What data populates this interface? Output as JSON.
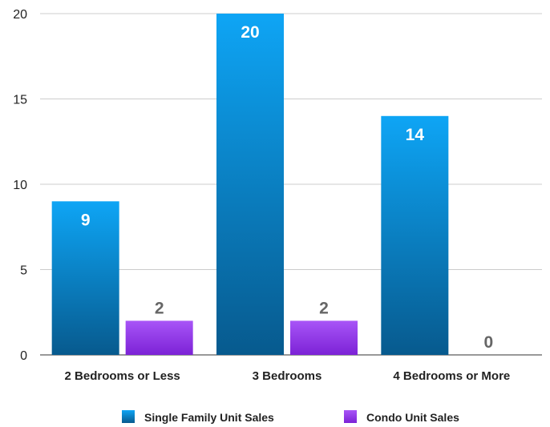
{
  "chart_data": {
    "type": "bar",
    "categories": [
      "2 Bedrooms or Less",
      "3 Bedrooms",
      "4 Bedrooms or More"
    ],
    "series": [
      {
        "name": "Single Family Unit Sales",
        "values": [
          9,
          20,
          14
        ],
        "color": "#1a8fe0"
      },
      {
        "name": "Condo Unit Sales",
        "values": [
          2,
          2,
          0
        ],
        "color": "#9333ea"
      }
    ],
    "ylim": [
      0,
      20
    ],
    "yticks": [
      0,
      5,
      10,
      15,
      20
    ],
    "grid": true,
    "legend": "bottom",
    "data_labels": true
  }
}
